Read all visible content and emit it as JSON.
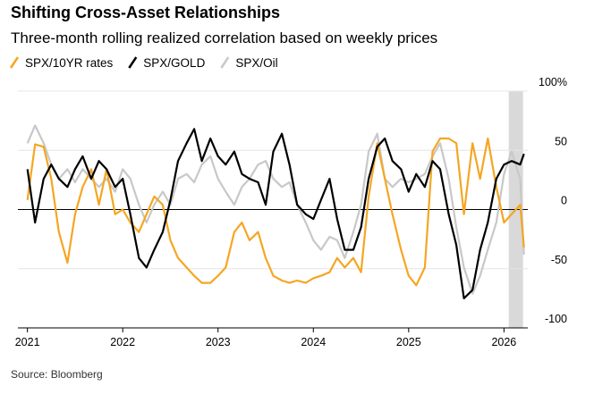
{
  "chart_data": {
    "type": "line",
    "title": "Shifting Cross-Asset Relationships",
    "subtitle": "Three-month rolling realized correlation based on weekly prices",
    "source": "Source: Bloomberg",
    "x": [
      2021,
      2021.08,
      2021.17,
      2021.25,
      2021.33,
      2021.42,
      2021.5,
      2021.58,
      2021.67,
      2021.75,
      2021.83,
      2021.92,
      2022,
      2022.08,
      2022.17,
      2022.25,
      2022.33,
      2022.42,
      2022.5,
      2022.58,
      2022.67,
      2022.75,
      2022.83,
      2022.92,
      2023,
      2023.08,
      2023.17,
      2023.25,
      2023.33,
      2023.42,
      2023.5,
      2023.58,
      2023.67,
      2023.75,
      2023.83,
      2023.92,
      2024,
      2024.08,
      2024.17,
      2024.25,
      2024.33,
      2024.42,
      2024.5,
      2024.58,
      2024.67,
      2024.75,
      2024.83,
      2024.92,
      2025,
      2025.08,
      2025.17,
      2025.25,
      2025.33,
      2025.42,
      2025.5,
      2025.58,
      2025.67,
      2025.75,
      2025.83,
      2025.92,
      2026,
      2026.08,
      2026.17,
      2026.21
    ],
    "series": [
      {
        "name": "SPX/10YR rates",
        "color": "#f5a623",
        "values": [
          8,
          55,
          53,
          26,
          -19,
          -45,
          -4,
          19,
          34,
          4,
          34,
          -4,
          0,
          -11,
          -19,
          -4,
          11,
          4,
          -26,
          -41,
          -49,
          -56,
          -62,
          -62,
          -56,
          -49,
          -19,
          -11,
          -26,
          -19,
          -41,
          -56,
          -60,
          -62,
          -60,
          -62,
          -58,
          -56,
          -53,
          -41,
          -49,
          -41,
          -53,
          11,
          56,
          26,
          -4,
          -34,
          -56,
          -64,
          -49,
          49,
          60,
          60,
          56,
          -4,
          56,
          26,
          60,
          19,
          -11,
          -4,
          4,
          -32
        ]
      },
      {
        "name": "SPX/GOLD",
        "color": "#000000",
        "values": [
          34,
          -11,
          26,
          38,
          26,
          19,
          34,
          45,
          26,
          41,
          34,
          19,
          26,
          -4,
          -41,
          -49,
          -34,
          -19,
          8,
          41,
          56,
          68,
          41,
          60,
          45,
          38,
          49,
          30,
          26,
          23,
          4,
          49,
          64,
          38,
          4,
          -4,
          -8,
          8,
          26,
          -8,
          -34,
          -34,
          -15,
          26,
          53,
          60,
          41,
          34,
          15,
          30,
          19,
          41,
          34,
          -4,
          -30,
          -75,
          -68,
          -34,
          -11,
          26,
          38,
          41,
          38,
          47
        ]
      },
      {
        "name": "SPX/Oil",
        "color": "#c8c8c8",
        "values": [
          56,
          71,
          56,
          38,
          26,
          34,
          23,
          34,
          26,
          19,
          26,
          15,
          34,
          26,
          4,
          -11,
          4,
          15,
          4,
          26,
          30,
          23,
          38,
          45,
          26,
          15,
          4,
          19,
          26,
          38,
          41,
          26,
          19,
          23,
          4,
          -11,
          -26,
          -34,
          -23,
          -26,
          -41,
          -19,
          4,
          49,
          64,
          26,
          19,
          26,
          23,
          26,
          30,
          45,
          56,
          26,
          -15,
          -49,
          -71,
          -56,
          -34,
          -11,
          30,
          49,
          26,
          -38
        ]
      }
    ],
    "xlim": [
      2020.9,
      2026.25
    ],
    "xticks": [
      2021,
      2022,
      2023,
      2024,
      2025,
      2026
    ],
    "ylim": [
      -100,
      100
    ],
    "yticks": [
      {
        "value": 100,
        "label": "100%"
      },
      50,
      0,
      -50,
      -100
    ],
    "highlight": [
      2026.05,
      2026.2
    ],
    "grid": true
  }
}
